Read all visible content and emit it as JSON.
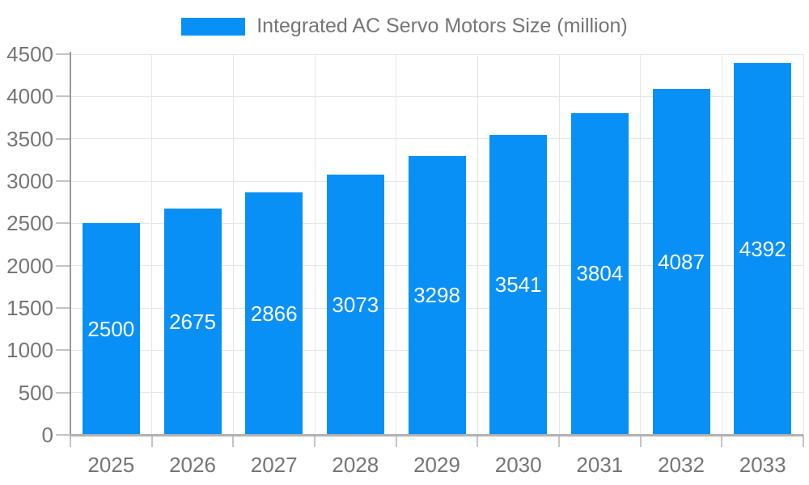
{
  "legend": {
    "label": "Integrated AC Servo Motors Size (million)"
  },
  "chart_data": {
    "type": "bar",
    "title": "Integrated AC Servo Motors Size (million)",
    "categories": [
      "2025",
      "2026",
      "2027",
      "2028",
      "2029",
      "2030",
      "2031",
      "2032",
      "2033"
    ],
    "series": [
      {
        "name": "Integrated AC Servo Motors Size (million)",
        "values": [
          2500,
          2675,
          2866,
          3073,
          3298,
          3541,
          3804,
          4087,
          4392
        ]
      }
    ],
    "xlabel": "",
    "ylabel": "",
    "ylim": [
      0,
      4500
    ],
    "ytick_step": 500,
    "yticks": [
      0,
      500,
      1000,
      1500,
      2000,
      2500,
      3000,
      3500,
      4000,
      4500
    ],
    "grid": true,
    "legend_position": "top",
    "value_labels": "inside-center",
    "colors": {
      "bar": "#0890F7",
      "value_label": "#FFFFFF",
      "axis_text": "#757575",
      "gridline": "#E6E6E6",
      "y_axis_line": "#9A9A9A",
      "x_axis_line": "#B2B2B2",
      "tick": "#C4C4C4"
    }
  }
}
